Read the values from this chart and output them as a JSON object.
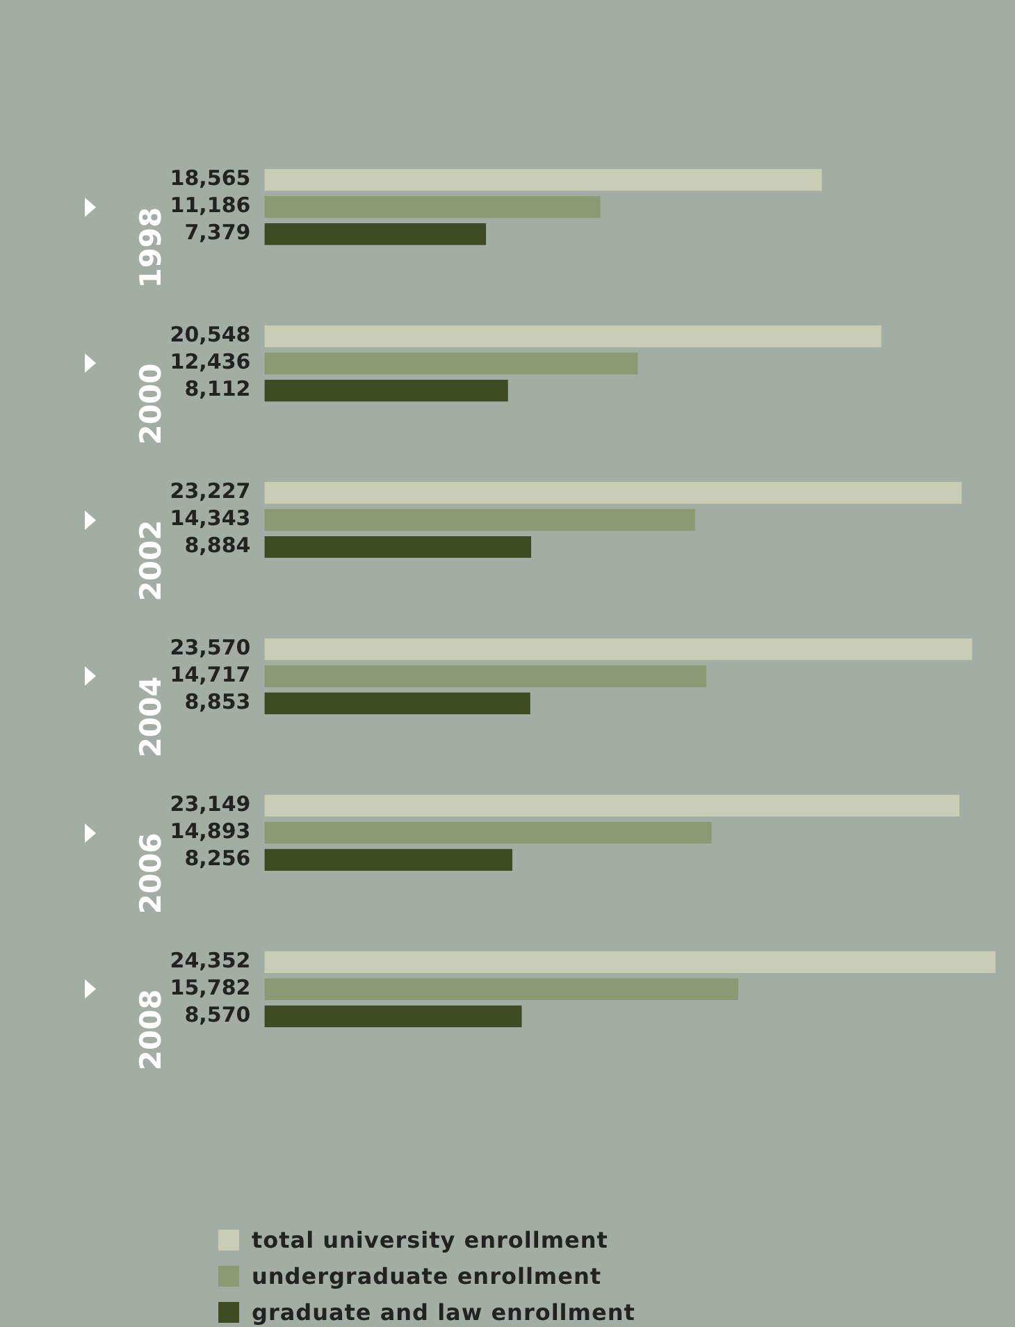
{
  "chart_data": {
    "type": "bar",
    "orientation": "horizontal",
    "categories": [
      "1998",
      "2000",
      "2002",
      "2004",
      "2006",
      "2008"
    ],
    "series": [
      {
        "name": "total university enrollment",
        "color": "#c9cdb5",
        "values": [
          18565,
          20548,
          23227,
          23570,
          23149,
          24352
        ],
        "value_labels": [
          "18,565",
          "20,548",
          "23,227",
          "23,570",
          "23,149",
          "24,352"
        ]
      },
      {
        "name": "undergraduate enrollment",
        "color": "#8a9a72",
        "values": [
          11186,
          12436,
          14343,
          14717,
          14893,
          15782
        ],
        "value_labels": [
          "11,186",
          "12,436",
          "14,343",
          "14,717",
          "14,893",
          "15,782"
        ]
      },
      {
        "name": "graduate and law enrollment",
        "color": "#3d4a22",
        "values": [
          7379,
          8112,
          8884,
          8853,
          8256,
          8570
        ],
        "value_labels": [
          "7,379",
          "8,112",
          "8,884",
          "8,853",
          "8,256",
          "8,570"
        ]
      }
    ],
    "grid": false,
    "legend": "bottom",
    "tick_labels": "y"
  }
}
